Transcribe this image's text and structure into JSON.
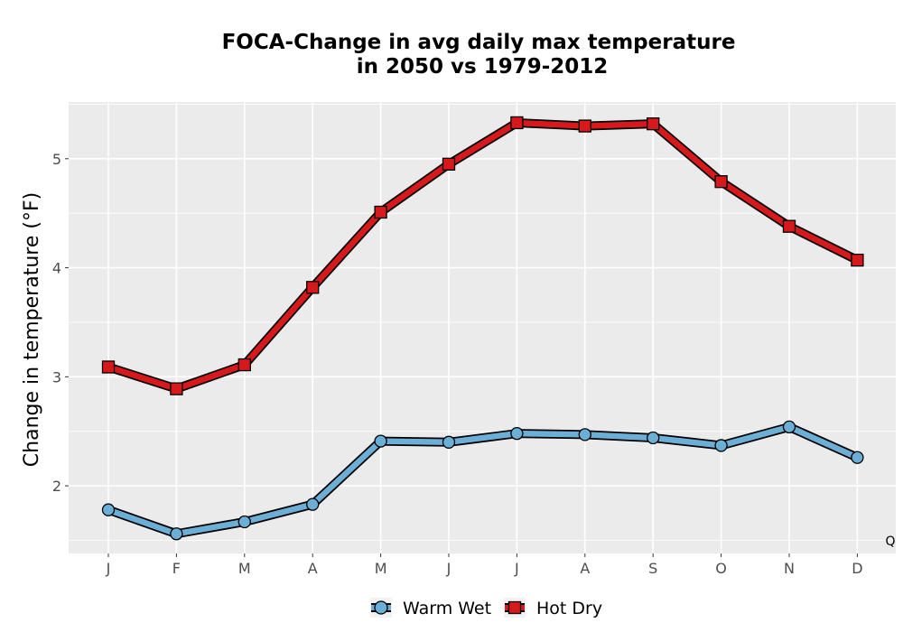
{
  "chart_data": {
    "type": "line",
    "title": [
      "FOCA-Change in avg daily max temperature",
      "in 2050 vs 1979-2012"
    ],
    "xlabel": "",
    "ylabel": "Change in temperature (°F)",
    "categories": [
      "J",
      "F",
      "M",
      "A",
      "M",
      "J",
      "J",
      "A",
      "S",
      "O",
      "N",
      "D"
    ],
    "ylim": [
      1.38,
      5.52
    ],
    "yticks": [
      2,
      3,
      4,
      5
    ],
    "grid": true,
    "legend_position": "bottom",
    "annotation": "Q",
    "series": [
      {
        "name": "Warm Wet",
        "marker": "circle",
        "color": "#6baed6",
        "values": [
          1.78,
          1.56,
          1.67,
          1.83,
          2.41,
          2.4,
          2.48,
          2.47,
          2.44,
          2.37,
          2.54,
          2.26
        ]
      },
      {
        "name": "Hot Dry",
        "marker": "square",
        "color": "#d7191c",
        "values": [
          3.09,
          2.89,
          3.11,
          3.82,
          4.51,
          4.95,
          5.33,
          5.3,
          5.32,
          4.79,
          4.38,
          4.07
        ]
      }
    ]
  },
  "colors": {
    "panel_background": "#ebebeb",
    "gridline": "#ffffff",
    "warm_wet": "#6baed6",
    "hot_dry": "#d7191c"
  }
}
